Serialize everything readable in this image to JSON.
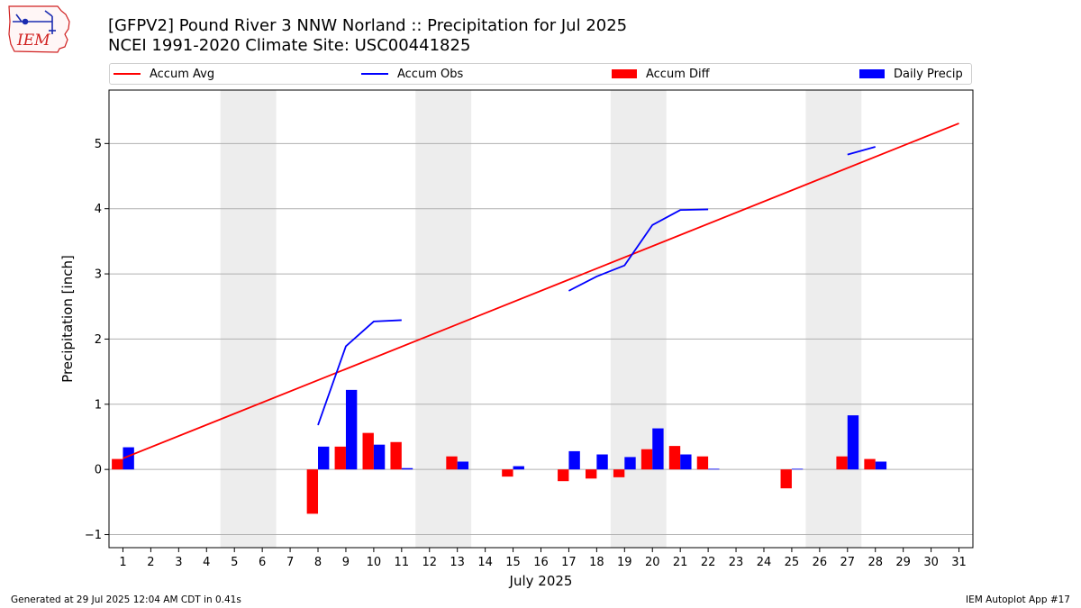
{
  "header": {
    "title_line1": "[GFPV2] Pound River 3 NNW Norland :: Precipitation for Jul 2025",
    "title_line2": "NCEI 1991-2020 Climate Site: USC00441825",
    "logo_text": "IEM"
  },
  "footer": {
    "left": "Generated at 29 Jul 2025 12:04 AM CDT in 0.41s",
    "right": "IEM Autoplot App #17"
  },
  "legend": {
    "avg": "Accum Avg",
    "obs": "Accum Obs",
    "diff": "Accum Diff",
    "daily": "Daily Precip"
  },
  "colors": {
    "avg": "#ff0000",
    "obs": "#0000ff",
    "diff": "#ff0000",
    "daily": "#0000ff",
    "weekend_band": "#ededed",
    "grid": "#b0b0b0"
  },
  "chart_data": {
    "type": "bar",
    "xlabel": "July 2025",
    "ylabel": "Precipitation [inch]",
    "xlim": [
      0.5,
      31.5
    ],
    "ylim": [
      -1.2,
      5.82
    ],
    "yticks": [
      -1,
      0,
      1,
      2,
      3,
      4,
      5
    ],
    "days": [
      1,
      2,
      3,
      4,
      5,
      6,
      7,
      8,
      9,
      10,
      11,
      12,
      13,
      14,
      15,
      16,
      17,
      18,
      19,
      20,
      21,
      22,
      23,
      24,
      25,
      26,
      27,
      28,
      29,
      30,
      31
    ],
    "weekend_days": [
      5,
      6,
      12,
      13,
      19,
      20,
      26,
      27
    ],
    "grid": "horizontal",
    "legend_position": "top",
    "series": [
      {
        "name": "Accum Avg",
        "kind": "line",
        "x": [
          1,
          31
        ],
        "values": [
          0.17,
          5.31
        ]
      },
      {
        "name": "Accum Obs",
        "kind": "line",
        "segments": [
          {
            "x": [
              8,
              9,
              10,
              11
            ],
            "values": [
              0.68,
              1.89,
              2.27,
              2.29
            ]
          },
          {
            "x": [
              17,
              18,
              19,
              20,
              21,
              22
            ],
            "values": [
              2.74,
              2.96,
              3.13,
              3.75,
              3.98,
              3.99
            ]
          },
          {
            "x": [
              27,
              28
            ],
            "values": [
              4.83,
              4.95
            ]
          }
        ]
      },
      {
        "name": "Accum Diff",
        "kind": "bar",
        "x": [
          1,
          8,
          9,
          10,
          11,
          13,
          15,
          17,
          18,
          19,
          20,
          21,
          22,
          25,
          27,
          28
        ],
        "values": [
          0.16,
          -0.68,
          0.35,
          0.56,
          0.42,
          0.2,
          -0.11,
          -0.18,
          -0.14,
          -0.12,
          0.31,
          0.36,
          0.2,
          -0.29,
          0.2,
          0.16
        ]
      },
      {
        "name": "Daily Precip",
        "kind": "bar",
        "x": [
          1,
          8,
          9,
          10,
          11,
          13,
          15,
          17,
          18,
          19,
          20,
          21,
          22,
          25,
          27,
          28
        ],
        "values": [
          0.34,
          0.35,
          1.22,
          0.38,
          0.02,
          0.12,
          0.05,
          0.28,
          0.23,
          0.19,
          0.63,
          0.23,
          0.01,
          0.01,
          0.83,
          0.12
        ]
      }
    ]
  }
}
